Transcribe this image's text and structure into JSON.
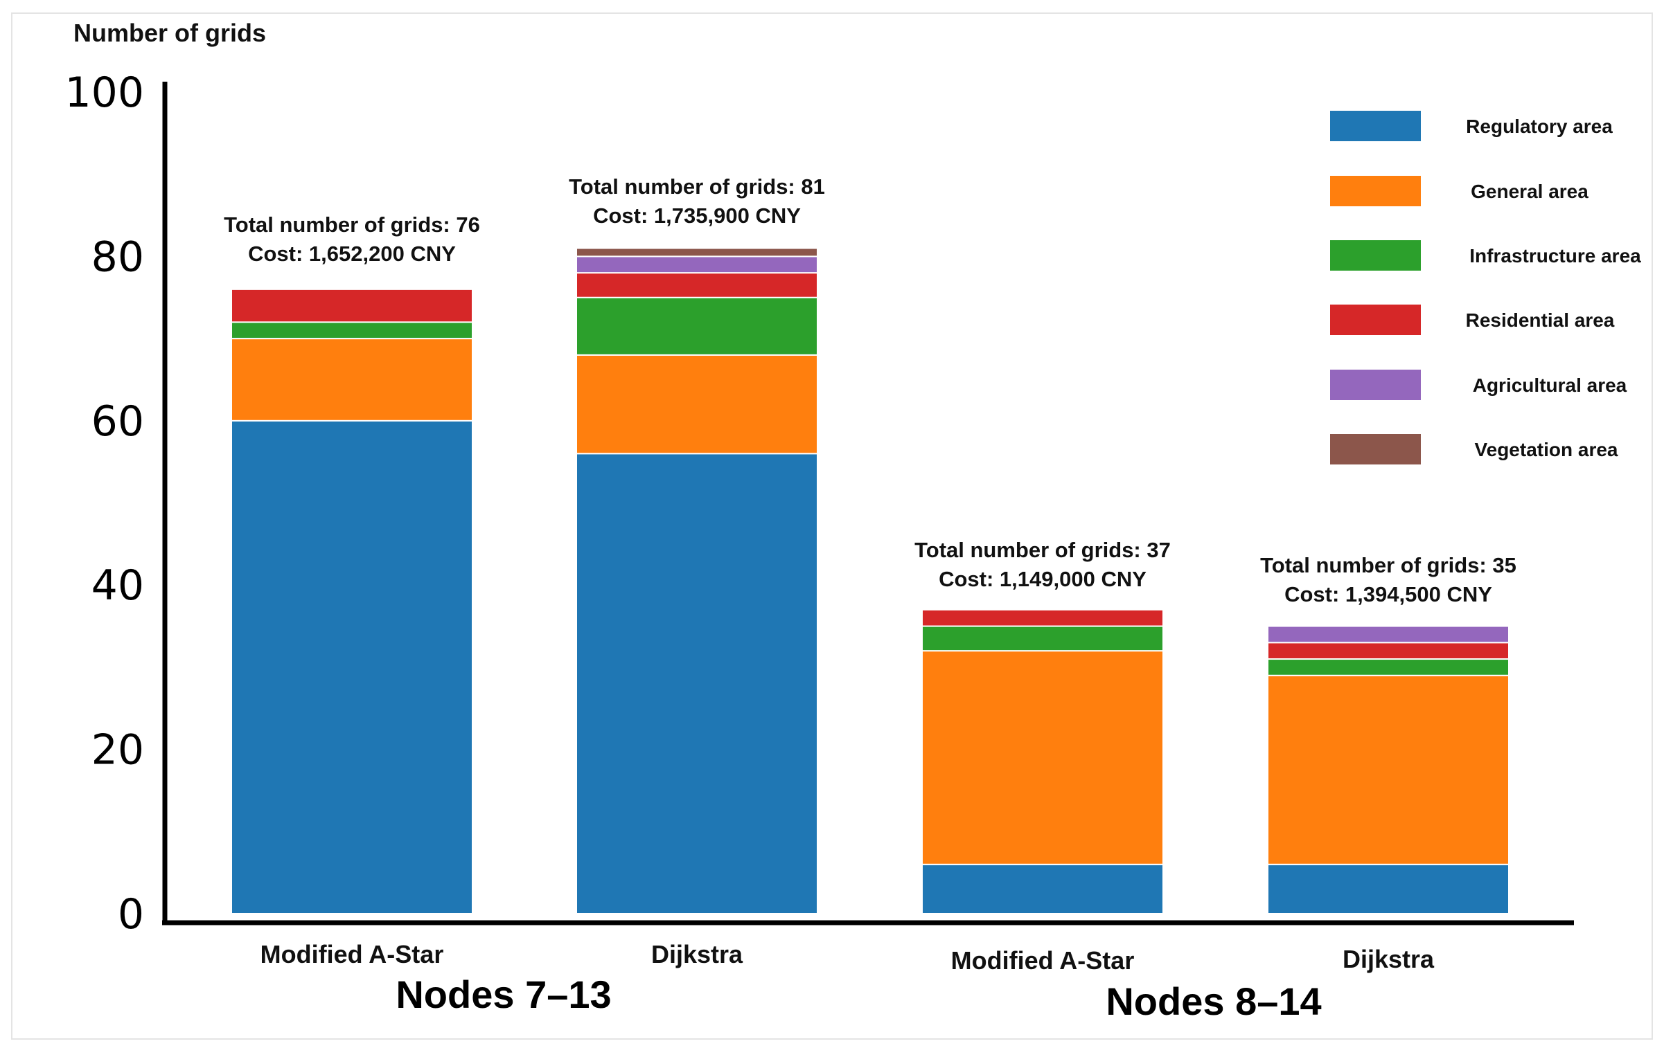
{
  "chart_data": {
    "type": "bar",
    "stacked": true,
    "ylabel": "Number of grids",
    "ylim": [
      0,
      100
    ],
    "yticks": [
      0,
      20,
      40,
      60,
      80,
      100
    ],
    "groups": [
      "Nodes 7–13",
      "Nodes 8–14"
    ],
    "categories": [
      "Modified A-Star",
      "Dijkstra",
      "Modified A-Star",
      "Dijkstra"
    ],
    "category_group": [
      0,
      0,
      1,
      1
    ],
    "series": [
      {
        "name": "Regulatory area",
        "color": "#1f77b4",
        "values": [
          60,
          56,
          6,
          6
        ]
      },
      {
        "name": "General area",
        "color": "#ff7f0e",
        "values": [
          10,
          12,
          26,
          23
        ]
      },
      {
        "name": "Infrastructure area",
        "color": "#2ca02c",
        "values": [
          2,
          7,
          3,
          2
        ]
      },
      {
        "name": "Residential area",
        "color": "#d62728",
        "values": [
          4,
          3,
          2,
          2
        ]
      },
      {
        "name": "Agricultural area",
        "color": "#9467bd",
        "values": [
          0,
          2,
          0,
          2
        ]
      },
      {
        "name": "Vegetation area",
        "color": "#8c564b",
        "values": [
          0,
          1,
          0,
          0
        ]
      }
    ],
    "annotations": [
      {
        "total": "Total number of grids: 76",
        "cost": "Cost: 1,652,200 CNY"
      },
      {
        "total": "Total number of grids: 81",
        "cost": "Cost: 1,735,900 CNY"
      },
      {
        "total": "Total number of grids: 37",
        "cost": "Cost: 1,149,000 CNY"
      },
      {
        "total": "Total number of grids: 35",
        "cost": "Cost: 1,394,500 CNY"
      }
    ],
    "legend_position": "top-right"
  }
}
